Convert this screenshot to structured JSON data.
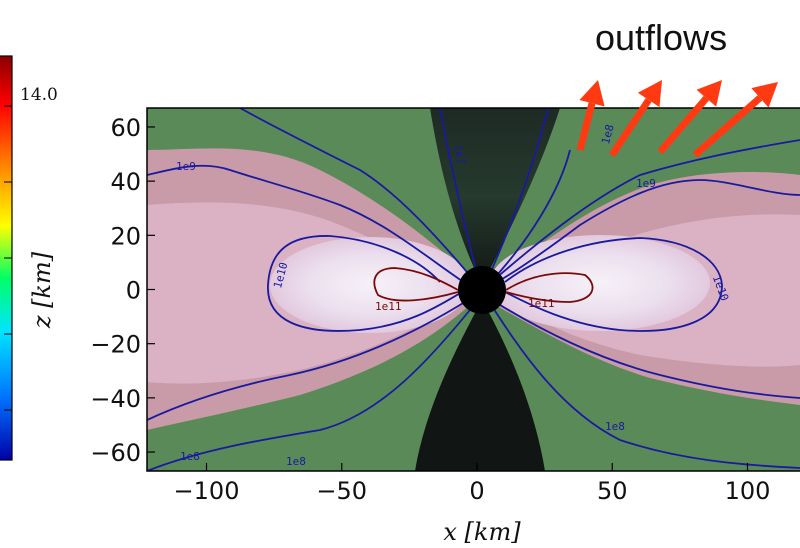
{
  "chart_data": {
    "type": "heatmap",
    "title": "",
    "xlabel": "x [km]",
    "ylabel": "z [km]",
    "xlim": [
      -122,
      122
    ],
    "ylim": [
      -67,
      67
    ],
    "xticks": [
      -100,
      -50,
      0,
      50,
      100
    ],
    "yticks": [
      60,
      40,
      20,
      0,
      -20,
      -40,
      -60
    ],
    "xtick_labels": [
      "−100",
      "−50",
      "0",
      "50",
      "100"
    ],
    "ytick_labels": [
      "60",
      "40",
      "20",
      "0",
      "−20",
      "−40",
      "−60"
    ],
    "colorbar": {
      "visible_tick_label": "14.0",
      "colormap": [
        "#8b0000",
        "#ff0000",
        "#ff8c00",
        "#ffff00",
        "#00ff66",
        "#00e5ff",
        "#0077ff",
        "#0000aa"
      ]
    },
    "contours": [
      {
        "label": "1e11",
        "color": "#7a0a0a"
      },
      {
        "label": "1e10",
        "color": "#1a1aa0"
      },
      {
        "label": "1e9",
        "color": "#1a1aa0"
      },
      {
        "label": "1e8",
        "color": "#1a1aa0"
      },
      {
        "label": "1e7",
        "color": "#1a1aa0"
      }
    ],
    "annotations": [
      {
        "text": "outflows",
        "arrow_count": 4,
        "arrow_color": "#ff3a12"
      }
    ]
  }
}
